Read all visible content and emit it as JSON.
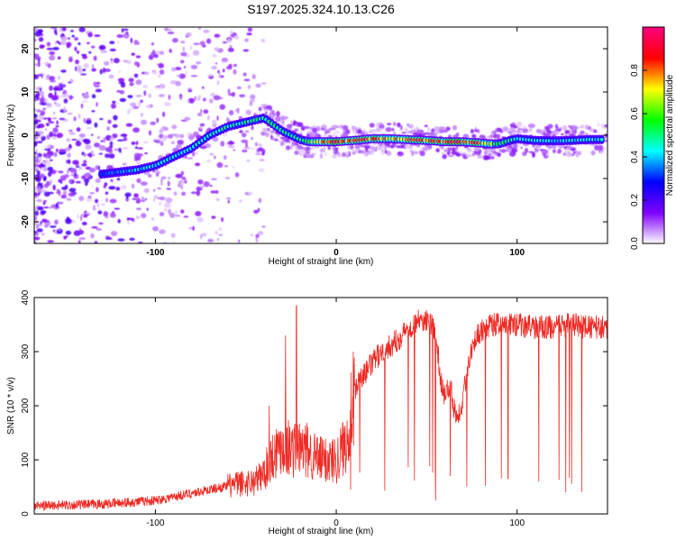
{
  "chart_data": [
    {
      "type": "heatmap",
      "title": "S197.2025.324.10.13.C26",
      "xlabel": "Height of straight line (km)",
      "ylabel": "Frequency (Hz)",
      "xlim": [
        -167,
        150
      ],
      "ylim": [
        -25,
        25
      ],
      "x_ticks": [
        -100,
        0,
        100
      ],
      "y_ticks": [
        -20,
        -10,
        0,
        10,
        20
      ],
      "colorbar": {
        "label": "Normalized spectral amplitude",
        "range": [
          0,
          1
        ],
        "ticks": [
          0.0,
          0.2,
          0.4,
          0.6,
          0.8
        ],
        "colors": [
          "#ffffff",
          "#8000ff",
          "#0000ff",
          "#00ffff",
          "#00ff00",
          "#ffff00",
          "#ff0000",
          "#ff0080"
        ]
      },
      "ridge": {
        "x": [
          -130,
          -120,
          -110,
          -100,
          -90,
          -80,
          -70,
          -60,
          -50,
          -40,
          -35,
          -30,
          -25,
          -20,
          -15,
          -10,
          0,
          10,
          20,
          30,
          40,
          50,
          60,
          70,
          80,
          85,
          90,
          95,
          100,
          110,
          120,
          130,
          140,
          148
        ],
        "y": [
          -9,
          -8.5,
          -8,
          -7,
          -5,
          -3,
          0,
          2,
          3,
          4,
          2.5,
          1,
          0,
          -1,
          -1.5,
          -1.5,
          -1.5,
          -1.2,
          -0.8,
          -0.8,
          -1,
          -1.2,
          -1.5,
          -1.5,
          -1.8,
          -2,
          -2,
          -1.3,
          -0.8,
          -1.2,
          -1.3,
          -1.2,
          -1.0,
          -1.0
        ]
      },
      "ridge_amplitude": {
        "x": [
          -130,
          -100,
          -60,
          -40,
          -20,
          -5,
          10,
          30,
          50,
          60,
          70,
          80,
          95,
          110,
          130,
          148
        ],
        "y": [
          0.35,
          0.45,
          0.5,
          0.55,
          0.5,
          0.9,
          0.85,
          0.8,
          0.85,
          0.9,
          0.9,
          0.8,
          0.5,
          0.45,
          0.45,
          0.45
        ]
      }
    },
    {
      "type": "line",
      "xlabel": "Height of straight line (km)",
      "ylabel": "SNR (10 * v/v)",
      "xlim": [
        -167,
        150
      ],
      "ylim": [
        0,
        400
      ],
      "x_ticks": [
        -100,
        0,
        100
      ],
      "y_ticks": [
        0,
        100,
        200,
        300,
        400
      ],
      "color": "#ee2a24",
      "baseline": {
        "x": [
          -167,
          -130,
          -100,
          -85,
          -70,
          -55,
          -45,
          -40,
          -35,
          -30,
          -25,
          -20,
          -15,
          -10,
          -5,
          0,
          5,
          8,
          12,
          18,
          25,
          30,
          35,
          40,
          45,
          50,
          55,
          58,
          60,
          63,
          65,
          67,
          70,
          72,
          75,
          78,
          80,
          85,
          90,
          100,
          110,
          120,
          130,
          140,
          150
        ],
        "y": [
          15,
          18,
          25,
          35,
          45,
          55,
          60,
          75,
          110,
          130,
          120,
          120,
          115,
          100,
          100,
          100,
          130,
          190,
          240,
          270,
          300,
          310,
          325,
          345,
          355,
          360,
          340,
          240,
          220,
          240,
          200,
          180,
          210,
          260,
          310,
          330,
          340,
          350,
          350,
          350,
          345,
          345,
          350,
          345,
          345
        ]
      },
      "spikes": [
        {
          "x": -22,
          "y": 385
        },
        {
          "x": -37,
          "y": 200
        },
        {
          "x": -28,
          "y": 330
        },
        {
          "x": 8,
          "y": 45
        },
        {
          "x": 55,
          "y": 25
        },
        {
          "x": 63,
          "y": 70
        },
        {
          "x": 95,
          "y": 65
        },
        {
          "x": 112,
          "y": 60
        },
        {
          "x": 127,
          "y": 40
        }
      ]
    }
  ]
}
